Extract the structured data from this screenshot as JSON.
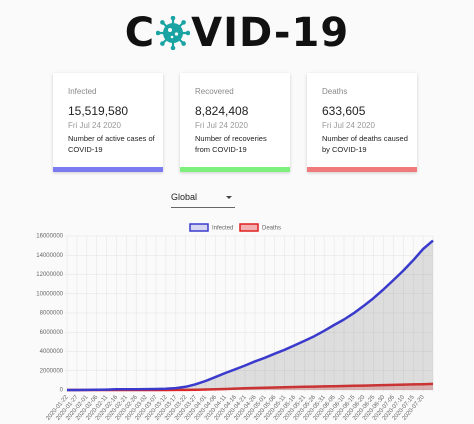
{
  "header": {
    "title_left": "C",
    "title_right": "VID-19"
  },
  "cards": [
    {
      "label": "Infected",
      "value": "15,519,580",
      "date": "Fri Jul 24 2020",
      "description": "Number of active cases of COVID-19",
      "color": "#7b7bef"
    },
    {
      "label": "Recovered",
      "value": "8,824,408",
      "date": "Fri Jul 24 2020",
      "description": "Number of recoveries from COVID-19",
      "color": "#7cef7c"
    },
    {
      "label": "Deaths",
      "value": "633,605",
      "date": "Fri Jul 24 2020",
      "description": "Number of deaths caused by COVID-19",
      "color": "#ef7b7b"
    }
  ],
  "selector": {
    "value": "Global"
  },
  "chart_data": {
    "type": "line",
    "categories": [
      "2020-01-22",
      "2020-01-27",
      "2020-02-01",
      "2020-02-06",
      "2020-02-11",
      "2020-02-16",
      "2020-02-21",
      "2020-02-26",
      "2020-03-02",
      "2020-03-07",
      "2020-03-12",
      "2020-03-17",
      "2020-03-22",
      "2020-03-27",
      "2020-04-01",
      "2020-04-06",
      "2020-04-11",
      "2020-04-16",
      "2020-04-21",
      "2020-04-26",
      "2020-05-01",
      "2020-05-06",
      "2020-05-11",
      "2020-05-16",
      "2020-05-21",
      "2020-05-26",
      "2020-05-31",
      "2020-06-05",
      "2020-06-10",
      "2020-06-15",
      "2020-06-20",
      "2020-06-25",
      "2020-06-30",
      "2020-07-05",
      "2020-07-10",
      "2020-07-15",
      "2020-07-20",
      null
    ],
    "series": [
      {
        "name": "Infected",
        "color": "#3a3acc",
        "fill_color": "rgba(120,120,120,0.22)",
        "legend_fill": "#d6d6f2",
        "values": [
          555,
          2927,
          12038,
          30818,
          45171,
          71224,
          76843,
          81397,
          90306,
          105836,
          128343,
          197146,
          336953,
          595800,
          932605,
          1345000,
          1771000,
          2151000,
          2549000,
          2972000,
          3349000,
          3770000,
          4178000,
          4634000,
          5102000,
          5589000,
          6150000,
          6750000,
          7320000,
          7990000,
          8750000,
          9550000,
          10450000,
          11420000,
          12410000,
          13480000,
          14650000,
          15519580
        ]
      },
      {
        "name": "Deaths",
        "color": "#e02020",
        "fill_color": "rgba(224,32,32,0.25)",
        "legend_fill": "#f2b0b0",
        "values": [
          17,
          82,
          259,
          636,
          1113,
          1770,
          2250,
          2770,
          3085,
          3558,
          4720,
          7900,
          14600,
          27300,
          47200,
          74500,
          108000,
          144000,
          177000,
          206000,
          239000,
          264000,
          286000,
          311000,
          330000,
          350000,
          372000,
          396000,
          417000,
          437000,
          460000,
          483000,
          511000,
          533000,
          560000,
          580000,
          607000,
          633605
        ]
      }
    ],
    "ylim": [
      0,
      16000000
    ],
    "yticks": [
      0,
      2000000,
      4000000,
      6000000,
      8000000,
      10000000,
      12000000,
      14000000,
      16000000
    ],
    "grid": true
  }
}
